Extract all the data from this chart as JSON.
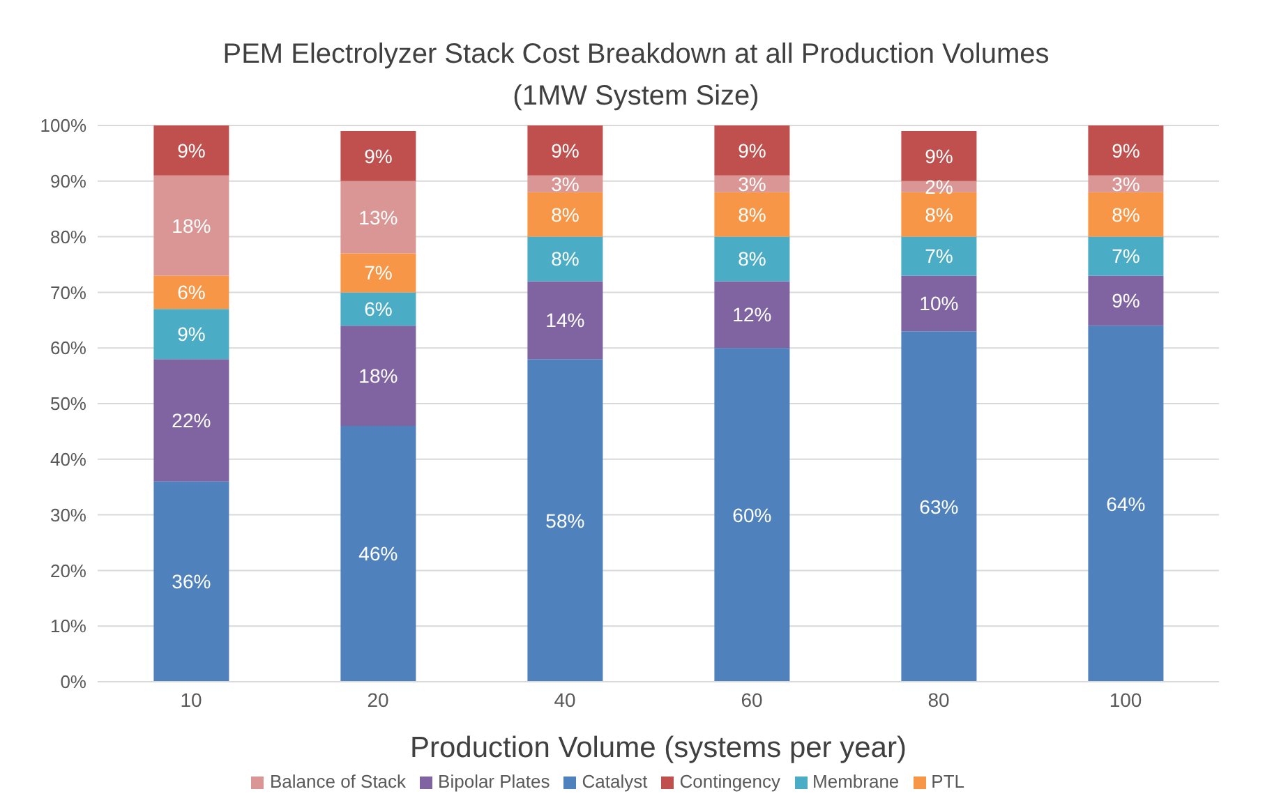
{
  "chart_data": {
    "type": "bar",
    "stacked": true,
    "title": "PEM Electrolyzer Stack Cost Breakdown at all Production Volumes",
    "subtitle": "(1MW System Size)",
    "xlabel": "Production Volume (systems per year)",
    "categories": [
      "10",
      "20",
      "40",
      "60",
      "80",
      "100"
    ],
    "series": [
      {
        "name": "Catalyst",
        "color": "#4f81bd",
        "values": [
          36,
          46,
          58,
          60,
          63,
          64
        ],
        "value_labels": [
          "36%",
          "46%",
          "58%",
          "60%",
          "63%",
          "64%"
        ]
      },
      {
        "name": "Bipolar Plates",
        "color": "#8064a2",
        "values": [
          22,
          18,
          14,
          12,
          10,
          9
        ],
        "value_labels": [
          "22%",
          "18%",
          "14%",
          "12%",
          "10%",
          "9%"
        ]
      },
      {
        "name": "Membrane",
        "color": "#4bacc6",
        "values": [
          9,
          6,
          8,
          8,
          7,
          7
        ],
        "value_labels": [
          "9%",
          "6%",
          "8%",
          "8%",
          "7%",
          "7%"
        ]
      },
      {
        "name": "PTL",
        "color": "#f79646",
        "values": [
          6,
          7,
          8,
          8,
          8,
          8
        ],
        "value_labels": [
          "6%",
          "7%",
          "8%",
          "8%",
          "8%",
          "8%"
        ]
      },
      {
        "name": "Balance of Stack",
        "color": "#d99694",
        "values": [
          18,
          13,
          3,
          3,
          2,
          3
        ],
        "value_labels": [
          "18%",
          "13%",
          "3%",
          "3%",
          "2%",
          "3%"
        ]
      },
      {
        "name": "Contingency",
        "color": "#c0504d",
        "values": [
          9,
          9,
          9,
          9,
          9,
          9
        ],
        "value_labels": [
          "9%",
          "9%",
          "9%",
          "9%",
          "9%",
          "9%"
        ]
      }
    ],
    "ylim": [
      0,
      100
    ],
    "yticks": [
      {
        "value": 0,
        "label": "0%"
      },
      {
        "value": 10,
        "label": "10%"
      },
      {
        "value": 20,
        "label": "20%"
      },
      {
        "value": 30,
        "label": "30%"
      },
      {
        "value": 40,
        "label": "40%"
      },
      {
        "value": 50,
        "label": "50%"
      },
      {
        "value": 60,
        "label": "60%"
      },
      {
        "value": 70,
        "label": "70%"
      },
      {
        "value": 80,
        "label": "80%"
      },
      {
        "value": 90,
        "label": "90%"
      },
      {
        "value": 100,
        "label": "100%"
      }
    ],
    "grid": "y",
    "legend": "bottom"
  }
}
